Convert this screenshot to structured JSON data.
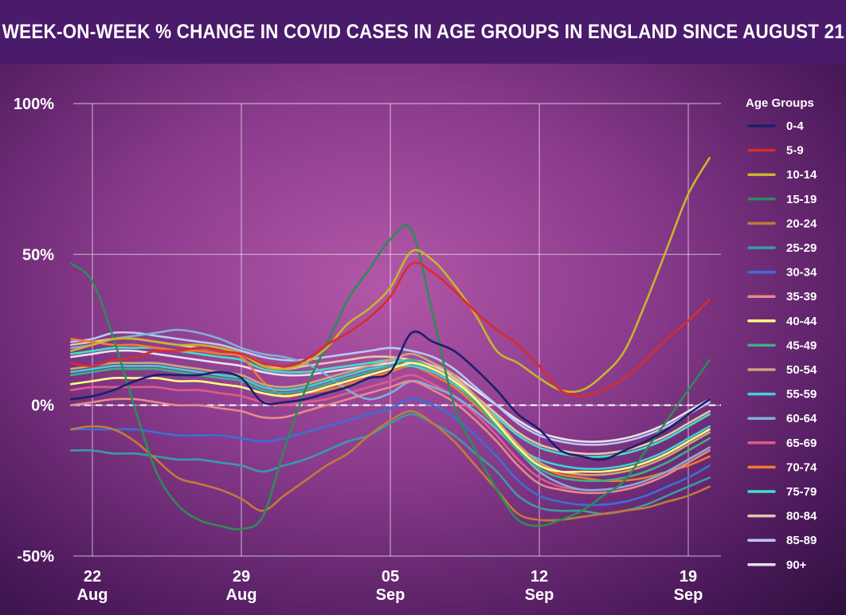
{
  "chart_data": {
    "type": "line",
    "title": "WEEK-ON-WEEK % CHANGE IN COVID CASES IN AGE GROUPS IN ENGLAND SINCE AUGUST 21",
    "xlabel": "",
    "ylabel": "",
    "ylim": [
      -50,
      100
    ],
    "xlim": [
      0,
      29
    ],
    "yticks": [
      {
        "value": 100,
        "label": "100%"
      },
      {
        "value": 50,
        "label": "50%"
      },
      {
        "value": 0,
        "label": "0%"
      },
      {
        "value": -50,
        "label": "-50%"
      }
    ],
    "xticks": [
      {
        "value": 1,
        "day": "22",
        "month": "Aug"
      },
      {
        "value": 8,
        "day": "29",
        "month": "Aug"
      },
      {
        "value": 15,
        "day": "05",
        "month": "Sep"
      },
      {
        "value": 22,
        "day": "12",
        "month": "Sep"
      },
      {
        "value": 29,
        "day": "19",
        "month": "Sep"
      }
    ],
    "grid": true,
    "legend_title": "Age Groups",
    "legend_position": "right",
    "series": [
      {
        "name": "0-4",
        "color": "#1a1f6e",
        "values": [
          2,
          3,
          5,
          8,
          10,
          10,
          10,
          11,
          9,
          1,
          1,
          2,
          4,
          6,
          9,
          11,
          24,
          21,
          18,
          12,
          5,
          -3,
          -8,
          -15,
          -17,
          -18,
          -15,
          -12,
          -8,
          -3,
          2
        ]
      },
      {
        "name": "5-9",
        "color": "#d92b2b",
        "values": [
          14,
          13,
          15,
          16,
          18,
          18,
          19,
          18,
          17,
          14,
          13,
          15,
          20,
          24,
          29,
          36,
          47,
          44,
          38,
          31,
          25,
          20,
          13,
          5,
          3,
          5,
          9,
          15,
          22,
          28,
          35
        ]
      },
      {
        "name": "10-14",
        "color": "#c7b52a",
        "values": [
          18,
          20,
          22,
          22,
          21,
          20,
          20,
          19,
          17,
          13,
          12,
          14,
          19,
          27,
          32,
          39,
          51,
          48,
          40,
          30,
          18,
          14,
          9,
          5,
          5,
          10,
          18,
          34,
          52,
          70,
          82
        ]
      },
      {
        "name": "15-19",
        "color": "#2e8b57",
        "values": [
          47,
          41,
          22,
          -1,
          -22,
          -33,
          -38,
          -40,
          -41,
          -37,
          -15,
          5,
          20,
          35,
          45,
          55,
          58,
          30,
          0,
          -15,
          -28,
          -38,
          -40,
          -38,
          -35,
          -30,
          -25,
          -15,
          -5,
          5,
          15
        ]
      },
      {
        "name": "20-24",
        "color": "#c27a3a",
        "values": [
          -8,
          -7,
          -8,
          -12,
          -18,
          -24,
          -26,
          -28,
          -31,
          -35,
          -30,
          -25,
          -20,
          -16,
          -10,
          -5,
          -2,
          -6,
          -12,
          -20,
          -28,
          -36,
          -38,
          -38,
          -37,
          -36,
          -35,
          -34,
          -32,
          -30,
          -27
        ]
      },
      {
        "name": "25-29",
        "color": "#3a9aa8",
        "values": [
          -15,
          -15,
          -16,
          -16,
          -17,
          -18,
          -18,
          -19,
          -20,
          -22,
          -20,
          -18,
          -15,
          -12,
          -10,
          -6,
          -3,
          -6,
          -10,
          -16,
          -22,
          -30,
          -34,
          -35,
          -35,
          -36,
          -35,
          -33,
          -30,
          -27,
          -24
        ]
      },
      {
        "name": "30-34",
        "color": "#3b6fd4",
        "values": [
          -8,
          -8,
          -8,
          -8,
          -9,
          -10,
          -10,
          -10,
          -11,
          -12,
          -11,
          -9,
          -7,
          -5,
          -3,
          -1,
          2,
          0,
          -4,
          -10,
          -17,
          -25,
          -30,
          -32,
          -33,
          -33,
          -32,
          -30,
          -27,
          -24,
          -20
        ]
      },
      {
        "name": "35-39",
        "color": "#e88a8a",
        "values": [
          0,
          1,
          2,
          2,
          1,
          0,
          0,
          -1,
          -2,
          -4,
          -4,
          -2,
          0,
          2,
          4,
          6,
          8,
          5,
          1,
          -5,
          -12,
          -20,
          -26,
          -28,
          -29,
          -29,
          -28,
          -26,
          -23,
          -19,
          -15
        ]
      },
      {
        "name": "40-44",
        "color": "#ffff80",
        "values": [
          7,
          8,
          9,
          9,
          9,
          8,
          8,
          7,
          6,
          4,
          3,
          4,
          6,
          8,
          10,
          12,
          14,
          12,
          8,
          2,
          -6,
          -14,
          -20,
          -22,
          -22,
          -22,
          -21,
          -19,
          -16,
          -12,
          -8
        ]
      },
      {
        "name": "45-49",
        "color": "#3fae8a",
        "values": [
          10,
          11,
          12,
          12,
          12,
          11,
          10,
          9,
          8,
          5,
          4,
          5,
          7,
          9,
          11,
          13,
          15,
          12,
          8,
          1,
          -7,
          -15,
          -21,
          -24,
          -25,
          -25,
          -24,
          -22,
          -19,
          -15,
          -11
        ]
      },
      {
        "name": "50-54",
        "color": "#c9a77a",
        "values": [
          12,
          13,
          14,
          14,
          14,
          13,
          12,
          11,
          10,
          7,
          6,
          7,
          9,
          11,
          13,
          15,
          17,
          14,
          10,
          3,
          -5,
          -13,
          -19,
          -22,
          -23,
          -23,
          -22,
          -20,
          -17,
          -13,
          -9
        ]
      },
      {
        "name": "55-59",
        "color": "#3fd0d8",
        "values": [
          11,
          12,
          13,
          13,
          13,
          12,
          11,
          10,
          9,
          6,
          5,
          6,
          8,
          10,
          12,
          13,
          13,
          11,
          7,
          1,
          -7,
          -14,
          -18,
          -20,
          -21,
          -21,
          -20,
          -18,
          -15,
          -11,
          -7
        ]
      },
      {
        "name": "60-64",
        "color": "#7fb0d8",
        "values": [
          19,
          20,
          22,
          23,
          24,
          25,
          24,
          22,
          19,
          17,
          16,
          14,
          10,
          5,
          2,
          4,
          8,
          6,
          3,
          -2,
          -8,
          -15,
          -22,
          -26,
          -28,
          -28,
          -27,
          -25,
          -22,
          -18,
          -14
        ]
      },
      {
        "name": "65-69",
        "color": "#e05a8a",
        "values": [
          5,
          6,
          6,
          6,
          6,
          5,
          5,
          4,
          3,
          1,
          0,
          1,
          2,
          4,
          6,
          8,
          10,
          7,
          3,
          -3,
          -10,
          -18,
          -24,
          -27,
          -28,
          -28,
          -27,
          -25,
          -22,
          -18,
          -14
        ]
      },
      {
        "name": "70-74",
        "color": "#f07a30",
        "values": [
          22,
          21,
          20,
          20,
          19,
          18,
          18,
          17,
          16,
          8,
          3,
          4,
          5,
          7,
          9,
          11,
          13,
          10,
          6,
          0,
          -7,
          -15,
          -20,
          -23,
          -24,
          -25,
          -25,
          -24,
          -22,
          -20,
          -17
        ]
      },
      {
        "name": "75-79",
        "color": "#40e0c8",
        "values": [
          17,
          18,
          19,
          19,
          19,
          18,
          17,
          16,
          15,
          12,
          11,
          11,
          12,
          13,
          14,
          15,
          14,
          12,
          8,
          2,
          -4,
          -10,
          -14,
          -16,
          -17,
          -17,
          -16,
          -14,
          -11,
          -7,
          -3
        ]
      },
      {
        "name": "80-84",
        "color": "#e6c6a8",
        "values": [
          20,
          21,
          22,
          22,
          21,
          20,
          19,
          18,
          17,
          14,
          12,
          13,
          14,
          15,
          16,
          16,
          15,
          13,
          9,
          3,
          -3,
          -9,
          -13,
          -15,
          -16,
          -16,
          -15,
          -13,
          -10,
          -6,
          -2
        ]
      },
      {
        "name": "85-89",
        "color": "#b8c8ee",
        "values": [
          21,
          22,
          24,
          24,
          23,
          22,
          21,
          20,
          18,
          16,
          15,
          15,
          16,
          17,
          18,
          19,
          18,
          16,
          12,
          6,
          0,
          -6,
          -10,
          -12,
          -13,
          -13,
          -12,
          -10,
          -7,
          -3,
          1
        ]
      },
      {
        "name": "90+",
        "color": "#e8e0f0",
        "values": [
          16,
          17,
          18,
          18,
          17,
          16,
          15,
          14,
          13,
          11,
          10,
          10,
          11,
          12,
          13,
          14,
          15,
          13,
          10,
          5,
          0,
          -5,
          -9,
          -11,
          -12,
          -12,
          -11,
          -9,
          -6,
          -2,
          2
        ]
      }
    ]
  }
}
